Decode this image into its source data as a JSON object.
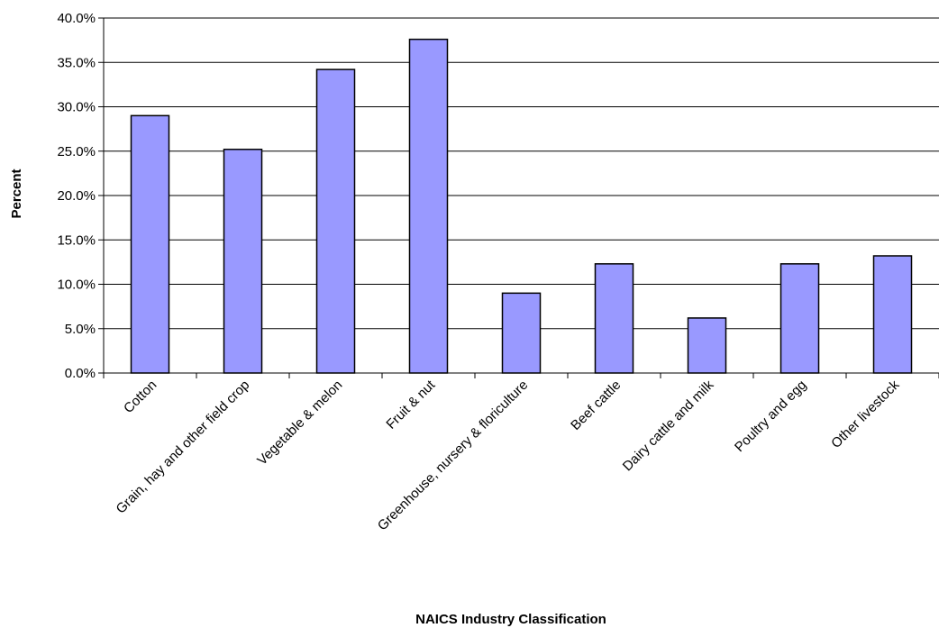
{
  "chart_data": {
    "type": "bar",
    "title": "",
    "xlabel": "NAICS Industry Classification",
    "ylabel": "Percent",
    "categories": [
      "Cotton",
      "Grain, hay and other field crop",
      "Vegetable & melon",
      "Fruit & nut",
      "Greenhouse, nursery & floriculture",
      "Beef cattle",
      "Dairy cattle and milk",
      "Poultry and egg",
      "Other livestock"
    ],
    "values": [
      29.0,
      25.2,
      34.2,
      37.6,
      9.0,
      12.3,
      6.2,
      12.3,
      13.2
    ],
    "ylim": [
      0,
      40
    ],
    "yticks": [
      0,
      5,
      10,
      15,
      20,
      25,
      30,
      35,
      40
    ],
    "ytick_labels": [
      "0.0%",
      "5.0%",
      "10.0%",
      "15.0%",
      "20.0%",
      "25.0%",
      "30.0%",
      "35.0%",
      "40.0%"
    ],
    "grid": true,
    "legend": "none",
    "colors": {
      "bar_fill": "#9999ff",
      "bar_stroke": "#000000",
      "grid": "#000000"
    }
  }
}
